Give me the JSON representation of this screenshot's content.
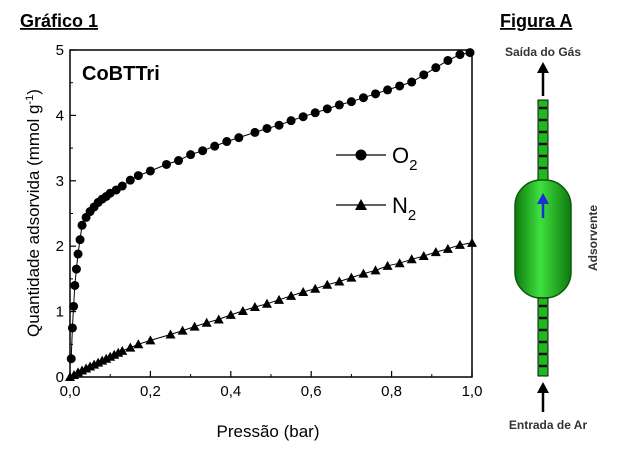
{
  "page": {
    "left_title": "Gráfico 1",
    "right_title": "Figura A"
  },
  "chart_data": {
    "type": "scatter",
    "inset_label": "CoBTTri",
    "xlabel": "Pressão (bar)",
    "ylabel_main": "Quantidade adsorvida (mmol g",
    "ylabel_sup": "-1",
    "ylabel_end": ")",
    "xlim": [
      0,
      1.0
    ],
    "ylim": [
      0,
      5
    ],
    "x_ticks": [
      0.0,
      0.2,
      0.4,
      0.6,
      0.8,
      1.0
    ],
    "x_tick_labels": [
      "0,0",
      "0,2",
      "0,4",
      "0,6",
      "0,8",
      "1,0"
    ],
    "y_ticks": [
      0,
      1,
      2,
      3,
      4,
      5
    ],
    "y_tick_labels": [
      "0",
      "1",
      "2",
      "3",
      "4",
      "5"
    ],
    "grid": false,
    "legend_position": "middle-right",
    "series": [
      {
        "name": "O",
        "name_sub": "2",
        "marker": "circle",
        "color": "#000000",
        "x": [
          0.003,
          0.006,
          0.009,
          0.012,
          0.016,
          0.02,
          0.025,
          0.03,
          0.04,
          0.05,
          0.06,
          0.07,
          0.08,
          0.09,
          0.1,
          0.115,
          0.13,
          0.15,
          0.17,
          0.2,
          0.24,
          0.27,
          0.3,
          0.33,
          0.36,
          0.39,
          0.42,
          0.46,
          0.49,
          0.52,
          0.55,
          0.58,
          0.61,
          0.64,
          0.67,
          0.7,
          0.73,
          0.76,
          0.79,
          0.82,
          0.85,
          0.88,
          0.91,
          0.94,
          0.97,
          0.995
        ],
        "y": [
          0.28,
          0.75,
          1.08,
          1.4,
          1.65,
          1.88,
          2.1,
          2.32,
          2.44,
          2.53,
          2.6,
          2.67,
          2.72,
          2.76,
          2.81,
          2.86,
          2.92,
          3.01,
          3.08,
          3.15,
          3.25,
          3.31,
          3.4,
          3.46,
          3.53,
          3.6,
          3.66,
          3.74,
          3.8,
          3.85,
          3.92,
          3.98,
          4.04,
          4.1,
          4.16,
          4.21,
          4.27,
          4.33,
          4.39,
          4.45,
          4.51,
          4.62,
          4.73,
          4.84,
          4.93,
          4.96
        ]
      },
      {
        "name": "N",
        "name_sub": "2",
        "marker": "triangle",
        "color": "#000000",
        "x": [
          0.0,
          0.01,
          0.02,
          0.03,
          0.04,
          0.05,
          0.06,
          0.07,
          0.08,
          0.09,
          0.1,
          0.11,
          0.12,
          0.13,
          0.15,
          0.17,
          0.2,
          0.25,
          0.28,
          0.31,
          0.34,
          0.37,
          0.4,
          0.43,
          0.46,
          0.49,
          0.52,
          0.55,
          0.58,
          0.61,
          0.64,
          0.67,
          0.7,
          0.73,
          0.76,
          0.79,
          0.82,
          0.85,
          0.88,
          0.91,
          0.94,
          0.97,
          1.0
        ],
        "y": [
          0.0,
          0.03,
          0.07,
          0.1,
          0.13,
          0.16,
          0.19,
          0.22,
          0.25,
          0.28,
          0.31,
          0.34,
          0.37,
          0.4,
          0.45,
          0.5,
          0.56,
          0.65,
          0.71,
          0.77,
          0.83,
          0.88,
          0.95,
          1.01,
          1.07,
          1.12,
          1.18,
          1.24,
          1.3,
          1.35,
          1.41,
          1.46,
          1.52,
          1.58,
          1.63,
          1.7,
          1.74,
          1.8,
          1.85,
          1.91,
          1.96,
          2.02,
          2.05
        ]
      }
    ]
  },
  "figure_a": {
    "top_label": "Saída do Gás",
    "bottom_label": "Entrada de Ar",
    "side_label": "Adsorvente",
    "column_color": "#1fb81f",
    "flow_arrow_color": "#1a2ed6"
  }
}
